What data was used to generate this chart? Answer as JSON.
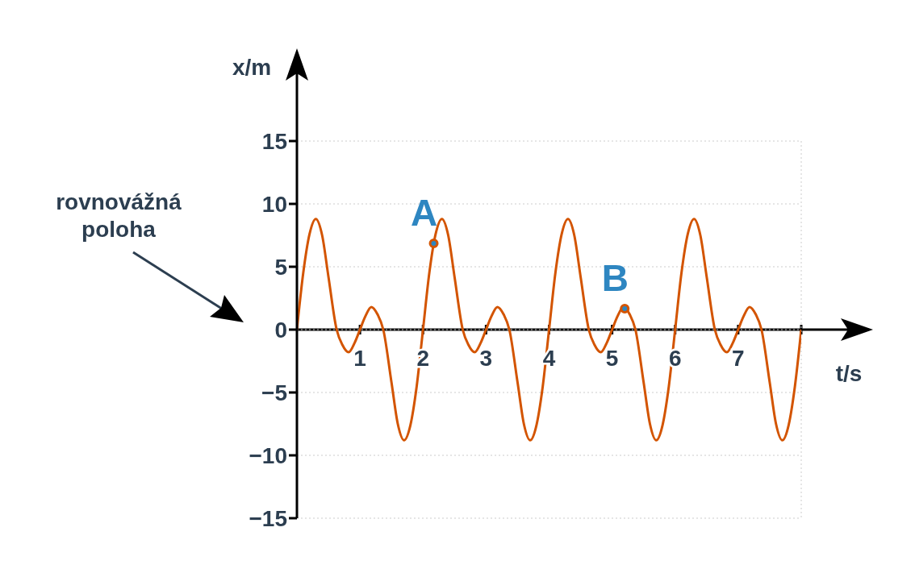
{
  "chart_data": {
    "type": "line",
    "ylabel": "x/m",
    "xlabel": "t/s",
    "xlim": [
      0,
      8
    ],
    "xticks": [
      1,
      2,
      3,
      4,
      5,
      6,
      7,
      {
        "value": 8,
        "label": null
      }
    ],
    "ylim": [
      -15,
      15
    ],
    "yticks": [
      {
        "value": -15,
        "label": "−15"
      },
      {
        "value": -10,
        "label": "−10"
      },
      {
        "value": -5,
        "label": "−5"
      },
      0,
      5,
      10,
      15
    ],
    "grid": true,
    "annotations": [
      "rovnovážná poloha",
      {
        "text": "A",
        "x": 2.17,
        "y": 6.86
      },
      {
        "text": "B",
        "x": 5.2,
        "y": 1.67
      }
    ],
    "series": [
      {
        "color": "#d35400",
        "marker": "none",
        "line_style": "solid",
        "x": [
          0,
          0.1,
          0.2,
          0.3,
          0.4,
          0.5,
          0.63,
          0.72,
          0.82,
          0.92,
          1,
          1.08,
          1.18,
          1.28,
          1.37,
          1.5,
          1.6,
          1.7,
          1.8,
          1.9,
          2,
          2.1,
          2.2,
          2.3,
          2.4,
          2.5,
          2.63,
          2.72,
          2.82,
          2.92,
          3,
          3.08,
          3.18,
          3.28,
          3.37,
          3.5,
          3.6,
          3.7,
          3.8,
          3.9,
          4,
          4.1,
          4.2,
          4.3,
          4.4,
          4.5,
          4.63,
          4.72,
          4.82,
          4.92,
          5,
          5.08,
          5.18,
          5.28,
          5.37,
          5.5,
          5.6,
          5.7,
          5.8,
          5.9,
          6,
          6.1,
          6.2,
          6.3,
          6.4,
          6.5,
          6.63,
          6.72,
          6.82,
          6.92,
          7,
          7.08,
          7.18,
          7.28,
          7.37,
          7.5,
          7.6,
          7.7,
          7.8,
          7.9,
          8
        ],
        "values": [
          0,
          4.5,
          7.6,
          8.8,
          7.5,
          4.2,
          0,
          -1.2,
          -1.8,
          -1,
          0,
          1,
          1.8,
          1.2,
          0,
          -4.2,
          -7.5,
          -8.8,
          -7.6,
          -4.5,
          0,
          4.5,
          7.6,
          8.8,
          7.5,
          4.2,
          0,
          -1.2,
          -1.8,
          -1,
          0,
          1,
          1.8,
          1.2,
          0,
          -4.2,
          -7.5,
          -8.8,
          -7.6,
          -4.5,
          0,
          4.5,
          7.6,
          8.8,
          7.5,
          4.2,
          0,
          -1.2,
          -1.8,
          -1,
          0,
          1,
          1.8,
          1.2,
          0,
          -4.2,
          -7.5,
          -8.8,
          -7.6,
          -4.5,
          0,
          4.5,
          7.6,
          8.8,
          7.5,
          4.2,
          0,
          -1.2,
          -1.8,
          -1,
          0,
          1,
          1.8,
          1.2,
          0,
          -4.2,
          -7.5,
          -8.8,
          -7.6,
          -4.5,
          0
        ]
      },
      {
        "type": "scatter",
        "color": "#2e86c1",
        "marker": "circle",
        "x": [
          2.17,
          5.2
        ],
        "values": [
          6.86,
          1.67
        ]
      }
    ]
  }
}
